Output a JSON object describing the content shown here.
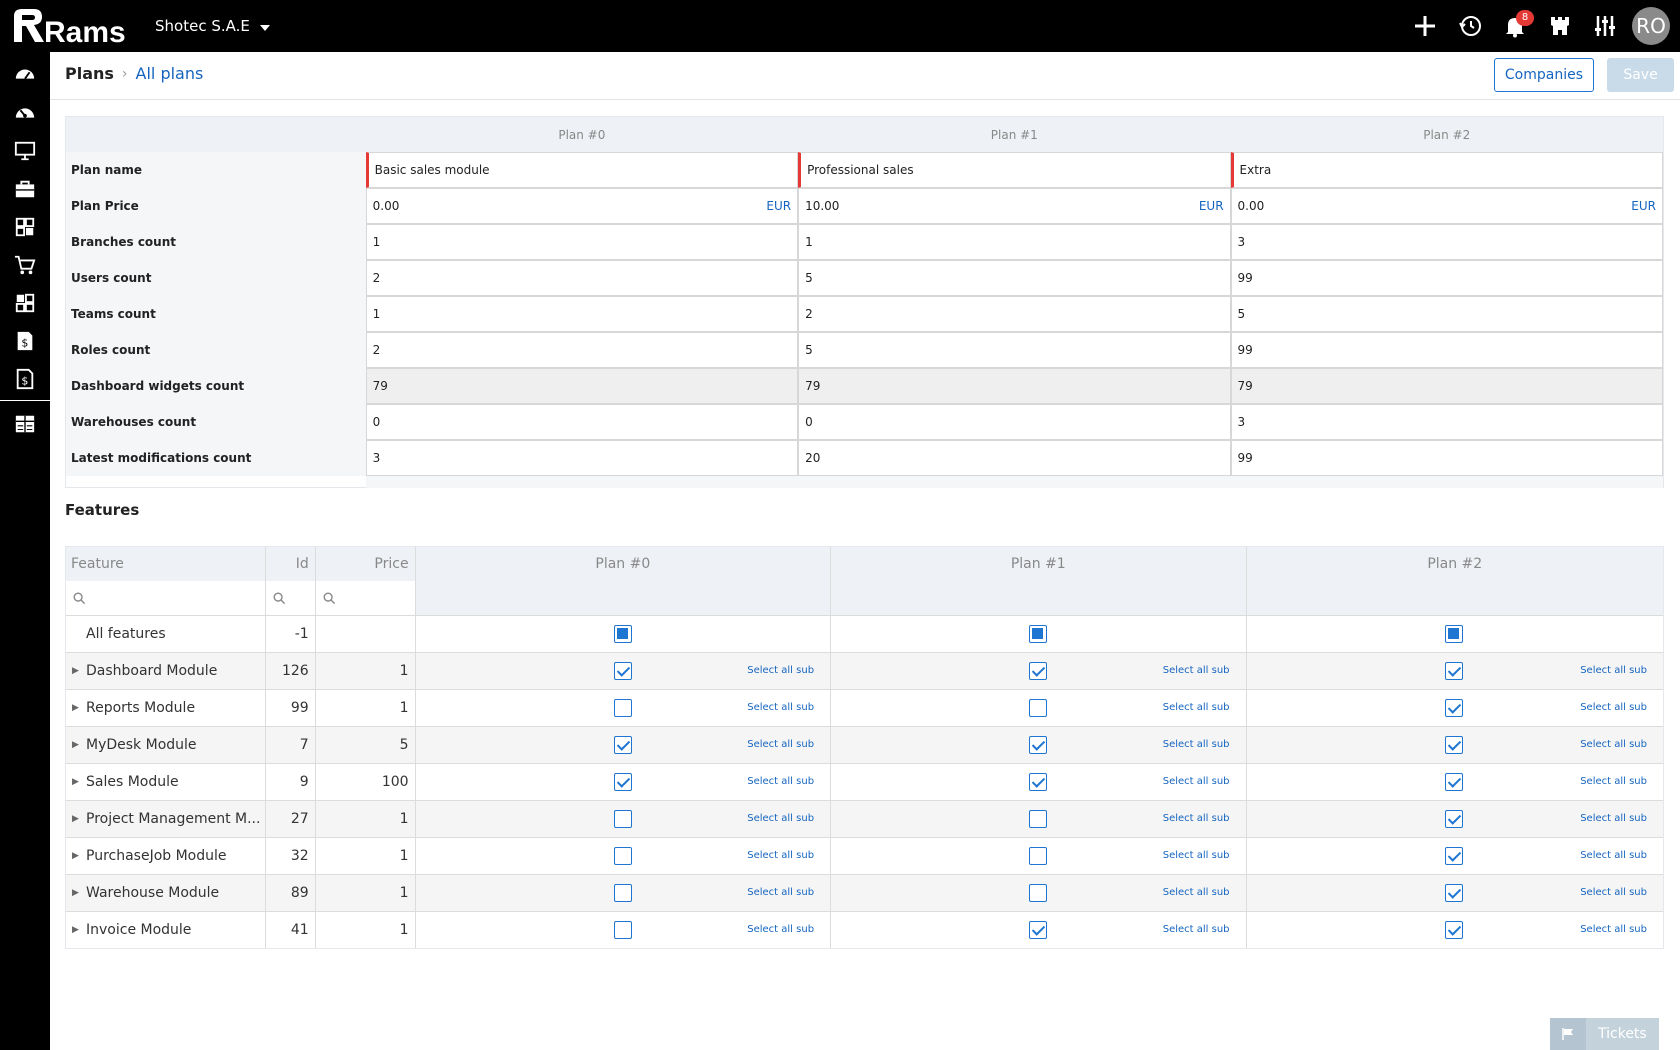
{
  "app": {
    "logo_text": "Rams",
    "company": "Shotec S.A.E"
  },
  "topbar": {
    "notification_count": "8",
    "avatar_initials": "RO",
    "icons": [
      "plus-icon",
      "history-icon",
      "bell-icon",
      "castle-icon",
      "sliders-icon"
    ]
  },
  "sidebar": {
    "icons": [
      "dashboard-icon",
      "dashboard-alt-icon",
      "monitor-icon",
      "briefcase-icon",
      "modules-icon",
      "cart-icon",
      "modules-alt-icon",
      "invoice-icon",
      "invoice-alt-icon",
      "plans-icon"
    ]
  },
  "breadcrumb": {
    "root": "Plans",
    "current": "All plans"
  },
  "actions": {
    "companies": "Companies",
    "save": "Save"
  },
  "plans": {
    "headers": [
      "Plan #0",
      "Plan #1",
      "Plan #2"
    ],
    "currency": "EUR",
    "rows": [
      {
        "label": "Plan name",
        "values": [
          "Basic sales module",
          "Professional sales",
          "Extra"
        ]
      },
      {
        "label": "Plan Price",
        "values": [
          "0.00",
          "10.00",
          "0.00"
        ]
      },
      {
        "label": "Branches count",
        "values": [
          "1",
          "1",
          "3"
        ]
      },
      {
        "label": "Users count",
        "values": [
          "2",
          "5",
          "99"
        ]
      },
      {
        "label": "Teams count",
        "values": [
          "1",
          "2",
          "5"
        ]
      },
      {
        "label": "Roles count",
        "values": [
          "2",
          "5",
          "99"
        ]
      },
      {
        "label": "Dashboard widgets count",
        "values": [
          "79",
          "79",
          "79"
        ]
      },
      {
        "label": "Warehouses count",
        "values": [
          "0",
          "0",
          "3"
        ]
      },
      {
        "label": "Latest modifications count",
        "values": [
          "3",
          "20",
          "99"
        ]
      }
    ]
  },
  "features": {
    "title": "Features",
    "columns": {
      "feature": "Feature",
      "id": "Id",
      "price": "Price",
      "plans": [
        "Plan #0",
        "Plan #1",
        "Plan #2"
      ]
    },
    "select_all_sub": "Select all sub",
    "rows": [
      {
        "name": "All features",
        "id": "-1",
        "price": "",
        "expandable": false,
        "checks": [
          "partial",
          "partial",
          "partial"
        ]
      },
      {
        "name": "Dashboard Module",
        "id": "126",
        "price": "1",
        "expandable": true,
        "checks": [
          true,
          true,
          true
        ]
      },
      {
        "name": "Reports Module",
        "id": "99",
        "price": "1",
        "expandable": true,
        "checks": [
          false,
          false,
          true
        ]
      },
      {
        "name": "MyDesk Module",
        "id": "7",
        "price": "5",
        "expandable": true,
        "checks": [
          true,
          true,
          true
        ]
      },
      {
        "name": "Sales Module",
        "id": "9",
        "price": "100",
        "expandable": true,
        "checks": [
          true,
          true,
          true
        ]
      },
      {
        "name": "Project Management M...",
        "id": "27",
        "price": "1",
        "expandable": true,
        "checks": [
          false,
          false,
          true
        ]
      },
      {
        "name": "PurchaseJob Module",
        "id": "32",
        "price": "1",
        "expandable": true,
        "checks": [
          false,
          false,
          true
        ]
      },
      {
        "name": "Warehouse Module",
        "id": "89",
        "price": "1",
        "expandable": true,
        "checks": [
          false,
          false,
          true
        ]
      },
      {
        "name": "Invoice Module",
        "id": "41",
        "price": "1",
        "expandable": true,
        "checks": [
          false,
          true,
          true
        ]
      }
    ]
  },
  "tickets": {
    "label": "Tickets"
  }
}
